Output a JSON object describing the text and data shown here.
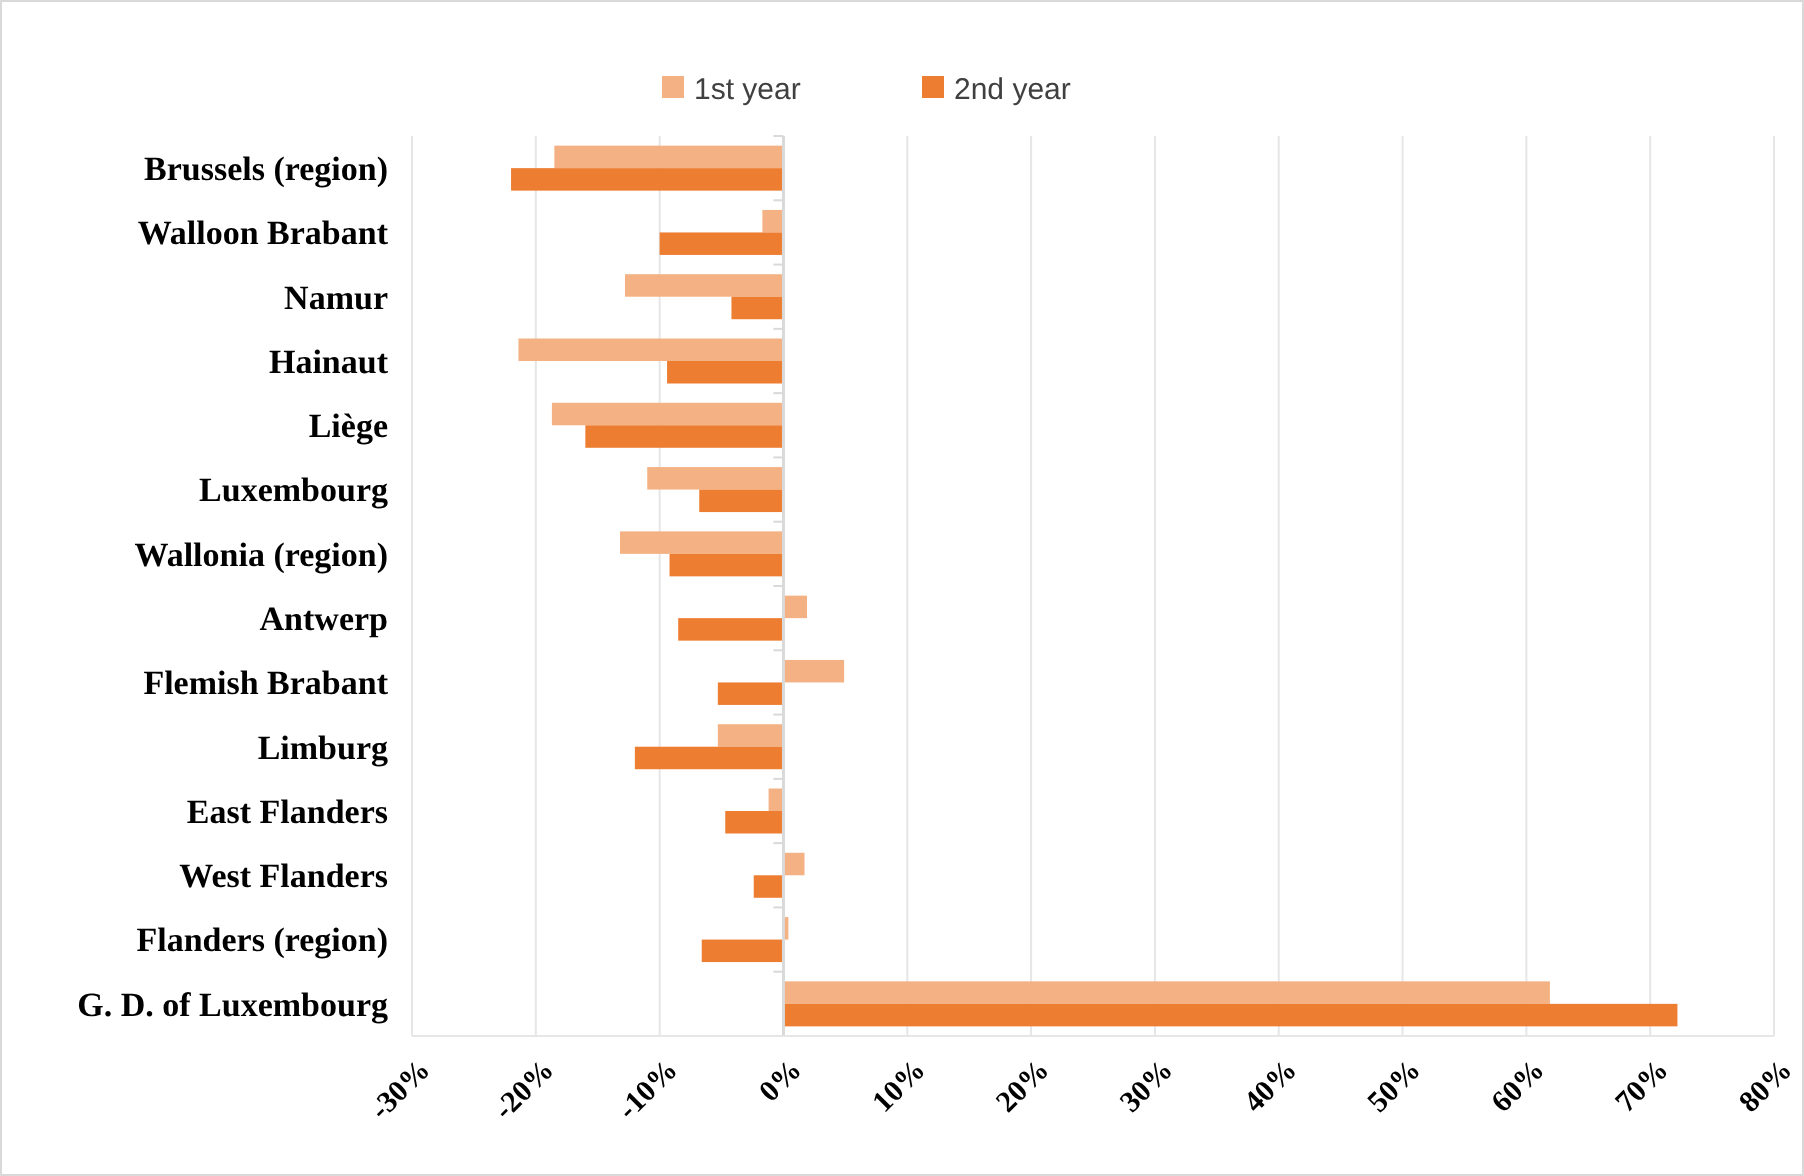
{
  "chart_data": {
    "type": "bar",
    "orientation": "horizontal",
    "categories": [
      "Brussels (region)",
      "Walloon Brabant",
      "Namur",
      "Hainaut",
      "Liège",
      "Luxembourg",
      "Wallonia (region)",
      "Antwerp",
      "Flemish Brabant",
      "Limburg",
      "East Flanders",
      "West Flanders",
      "Flanders (region)",
      "G. D. of Luxembourg"
    ],
    "series": [
      {
        "name": "1st year",
        "color": "#f4b183",
        "values": [
          -18.5,
          -1.7,
          -12.8,
          -21.4,
          -18.7,
          -11.0,
          -13.2,
          1.9,
          4.9,
          -5.3,
          -1.2,
          1.7,
          0.4,
          61.9
        ]
      },
      {
        "name": "2nd year",
        "color": "#ed7d31",
        "values": [
          -22.0,
          -10.0,
          -4.2,
          -9.4,
          -16.0,
          -6.8,
          -9.2,
          -8.5,
          -5.3,
          -12.0,
          -4.7,
          -2.4,
          -6.6,
          72.2
        ]
      }
    ],
    "xlim": [
      -30,
      80
    ],
    "xticks": [
      {
        "value": -30,
        "label": "-30%"
      },
      {
        "value": -20,
        "label": "-20%"
      },
      {
        "value": -10,
        "label": "-10%"
      },
      {
        "value": 0,
        "label": "0%"
      },
      {
        "value": 10,
        "label": "10%"
      },
      {
        "value": 20,
        "label": "20%"
      },
      {
        "value": 30,
        "label": "30%"
      },
      {
        "value": 40,
        "label": "40%"
      },
      {
        "value": 50,
        "label": "50%"
      },
      {
        "value": 60,
        "label": "60%"
      },
      {
        "value": 70,
        "label": "70%"
      },
      {
        "value": 80,
        "label": "80%"
      }
    ],
    "grid": "x",
    "legend": "top"
  }
}
